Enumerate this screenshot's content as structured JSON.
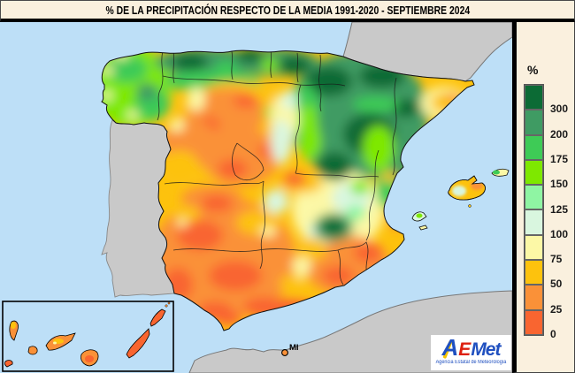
{
  "title": "% DE LA PRECIPITACIÓN RESPECTO DE LA MEDIA 1991-2020 - SEPTIEMBRE 2024",
  "legend": {
    "unit": "%",
    "labels": [
      "300",
      "200",
      "175",
      "150",
      "125",
      "100",
      "75",
      "50",
      "25",
      "0"
    ],
    "colors": [
      "#0C6B35",
      "#3F9B63",
      "#3ECB56",
      "#7EE800",
      "#8FF5A3",
      "#D9F6DF",
      "#FCF8A6",
      "#FDC20D",
      "#FA9138",
      "#F96530"
    ]
  },
  "map": {
    "sea_color": "#BDDFF7",
    "land_neighbor_color": "#C9C9C9",
    "marker_label": "MI"
  },
  "logo": {
    "part_a": "A",
    "part_e": "E",
    "part_met": "Met",
    "subtitle": "Agencia Estatal de Meteorología"
  }
}
